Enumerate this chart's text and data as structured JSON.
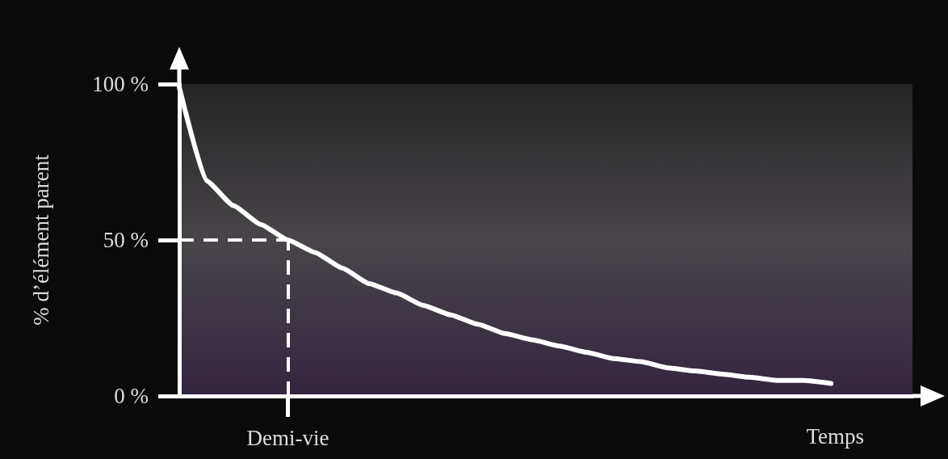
{
  "chart_data": {
    "type": "line",
    "xlabel": "Temps",
    "ylabel": "% d’élément parent",
    "categories": [
      null,
      null,
      null,
      null,
      "Demi-vie",
      null,
      null,
      null,
      null,
      null,
      null,
      null,
      null,
      null,
      null,
      null,
      null,
      null,
      null,
      null,
      null,
      null,
      null,
      null,
      null,
      null,
      null,
      null
    ],
    "series": [
      {
        "color": "#ffffff",
        "values": [
          99,
          69,
          61,
          55,
          50,
          46,
          41,
          36,
          33,
          29,
          26,
          23,
          20,
          18,
          16,
          14,
          12,
          11,
          9,
          8,
          7,
          6,
          5,
          5,
          4,
          null,
          null,
          null
        ]
      }
    ],
    "ylim": [
      0,
      100
    ],
    "yticks": [
      {
        "value": 0,
        "label": "0 %"
      },
      {
        "value": 50,
        "label": "50 %"
      },
      {
        "value": 100,
        "label": "100 %"
      }
    ],
    "ref_lines": [
      {
        "axis": "y",
        "value": 50,
        "color": "#ffffff",
        "line_style": "dashed"
      },
      {
        "axis": "x",
        "value": "Demi-vie",
        "color": "#ffffff",
        "line_style": "dashed"
      }
    ],
    "marker": "none",
    "line_style": "solid",
    "grid": false
  }
}
